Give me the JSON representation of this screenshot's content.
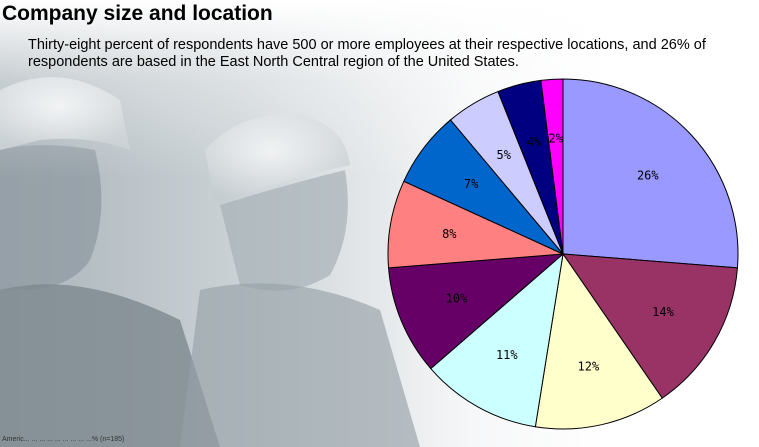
{
  "header": {
    "title": "Company size and location",
    "subtitle": "Thirty-eight percent of respondents have 500 or more employees at their respective locations, and 26% of respondents are based in the East North Central region of the United States.",
    "footnote": "Americ... ... ... ... ... ... ... ... ...% (n=185)"
  },
  "chart_data": {
    "type": "pie",
    "values": [
      26,
      14,
      12,
      11,
      10,
      8,
      7,
      5,
      4,
      2
    ],
    "labels": [
      "26%",
      "14%",
      "12%",
      "11%",
      "10%",
      "8%",
      "7%",
      "5%",
      "4%",
      "2%"
    ],
    "colors": [
      "#9999ff",
      "#993366",
      "#ffffcc",
      "#ccffff",
      "#660066",
      "#ff8080",
      "#0066cc",
      "#ccccff",
      "#000080",
      "#ff00ff"
    ],
    "start": "12 o'clock",
    "direction": "clockwise"
  }
}
